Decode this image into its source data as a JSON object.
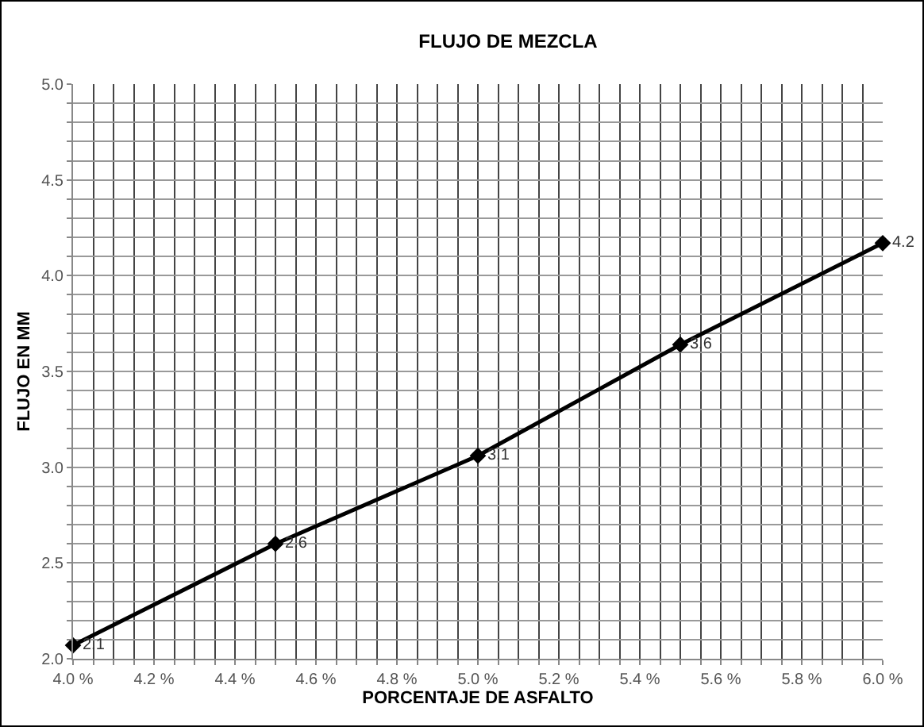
{
  "chart_data": {
    "type": "line",
    "title": "FLUJO DE MEZCLA",
    "xlabel": "PORCENTAJE DE ASFALTO",
    "ylabel": "FLUJO EN MM",
    "x": [
      4.0,
      4.5,
      5.0,
      5.5,
      6.0
    ],
    "series": [
      {
        "color": "#000000",
        "values": [
          2.07,
          2.6,
          3.06,
          3.64,
          4.17
        ],
        "value_labels": [
          "2.1",
          "2.6",
          "3.1",
          "3.6",
          "4.2"
        ]
      }
    ],
    "xlim": [
      4.0,
      6.0
    ],
    "xticks": [
      {
        "value": 4.0,
        "label": "4.0 %"
      },
      {
        "value": 4.05,
        "label": null
      },
      {
        "value": 4.1,
        "label": null
      },
      {
        "value": 4.15,
        "label": null
      },
      {
        "value": 4.2,
        "label": "4.2 %"
      },
      {
        "value": 4.25,
        "label": null
      },
      {
        "value": 4.3,
        "label": null
      },
      {
        "value": 4.35,
        "label": null
      },
      {
        "value": 4.4,
        "label": "4.4 %"
      },
      {
        "value": 4.45,
        "label": null
      },
      {
        "value": 4.5,
        "label": null
      },
      {
        "value": 4.55,
        "label": null
      },
      {
        "value": 4.6,
        "label": "4.6 %"
      },
      {
        "value": 4.65,
        "label": null
      },
      {
        "value": 4.7,
        "label": null
      },
      {
        "value": 4.75,
        "label": null
      },
      {
        "value": 4.8,
        "label": "4.8 %"
      },
      {
        "value": 4.85,
        "label": null
      },
      {
        "value": 4.9,
        "label": null
      },
      {
        "value": 4.95,
        "label": null
      },
      {
        "value": 5.0,
        "label": "5.0 %"
      },
      {
        "value": 5.05,
        "label": null
      },
      {
        "value": 5.1,
        "label": null
      },
      {
        "value": 5.15,
        "label": null
      },
      {
        "value": 5.2,
        "label": "5.2 %"
      },
      {
        "value": 5.25,
        "label": null
      },
      {
        "value": 5.3,
        "label": null
      },
      {
        "value": 5.35,
        "label": null
      },
      {
        "value": 5.4,
        "label": "5.4 %"
      },
      {
        "value": 5.45,
        "label": null
      },
      {
        "value": 5.5,
        "label": null
      },
      {
        "value": 5.55,
        "label": null
      },
      {
        "value": 5.6,
        "label": "5.6 %"
      },
      {
        "value": 5.65,
        "label": null
      },
      {
        "value": 5.7,
        "label": null
      },
      {
        "value": 5.75,
        "label": null
      },
      {
        "value": 5.8,
        "label": "5.8 %"
      },
      {
        "value": 5.85,
        "label": null
      },
      {
        "value": 5.9,
        "label": null
      },
      {
        "value": 5.95,
        "label": null
      },
      {
        "value": 6.0,
        "label": "6.0 %"
      }
    ],
    "ylim": [
      2.0,
      5.0
    ],
    "yticks": [
      {
        "value": 2.0,
        "label": "2.0"
      },
      {
        "value": 2.1,
        "label": null
      },
      {
        "value": 2.2,
        "label": null
      },
      {
        "value": 2.3,
        "label": null
      },
      {
        "value": 2.4,
        "label": null
      },
      {
        "value": 2.5,
        "label": "2.5"
      },
      {
        "value": 2.6,
        "label": null
      },
      {
        "value": 2.7,
        "label": null
      },
      {
        "value": 2.8,
        "label": null
      },
      {
        "value": 2.9,
        "label": null
      },
      {
        "value": 3.0,
        "label": "3.0"
      },
      {
        "value": 3.1,
        "label": null
      },
      {
        "value": 3.2,
        "label": null
      },
      {
        "value": 3.3,
        "label": null
      },
      {
        "value": 3.4,
        "label": null
      },
      {
        "value": 3.5,
        "label": "3.5"
      },
      {
        "value": 3.6,
        "label": null
      },
      {
        "value": 3.7,
        "label": null
      },
      {
        "value": 3.8,
        "label": null
      },
      {
        "value": 3.9,
        "label": null
      },
      {
        "value": 4.0,
        "label": "4.0"
      },
      {
        "value": 4.1,
        "label": null
      },
      {
        "value": 4.2,
        "label": null
      },
      {
        "value": 4.3,
        "label": null
      },
      {
        "value": 4.4,
        "label": null
      },
      {
        "value": 4.5,
        "label": "4.5"
      },
      {
        "value": 4.6,
        "label": null
      },
      {
        "value": 4.7,
        "label": null
      },
      {
        "value": 4.8,
        "label": null
      },
      {
        "value": 4.9,
        "label": null
      },
      {
        "value": 5.0,
        "label": "5.0"
      }
    ],
    "grid": true,
    "marker": "diamond",
    "line_style": "solid"
  }
}
